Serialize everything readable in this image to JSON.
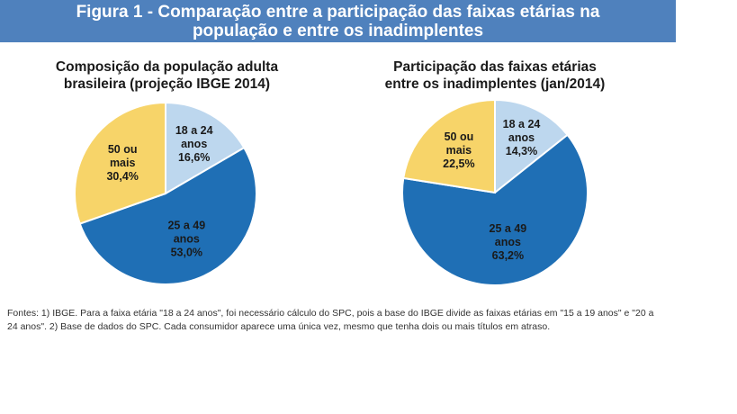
{
  "banner": {
    "line1": "Figura 1 - Comparação entre a participação das faixas etárias na",
    "line2": "população e entre os inadimplentes"
  },
  "chart_data": [
    {
      "type": "pie",
      "title_line1": "Composição da população adulta",
      "title_line2": "brasileira (projeção IBGE 2014)",
      "slices": [
        {
          "label_lines": [
            "18 a 24",
            "anos"
          ],
          "value": 16.6,
          "value_text": "16,6%",
          "color": "#bdd7ee"
        },
        {
          "label_lines": [
            "25 a 49",
            "anos"
          ],
          "value": 53.0,
          "value_text": "53,0%",
          "color": "#1f6fb5"
        },
        {
          "label_lines": [
            "50 ou",
            "mais"
          ],
          "value": 30.4,
          "value_text": "30,4%",
          "color": "#f7d469"
        }
      ]
    },
    {
      "type": "pie",
      "title_line1": "Participação das faixas etárias",
      "title_line2": "entre os inadimplentes (jan/2014)",
      "slices": [
        {
          "label_lines": [
            "18 a 24",
            "anos"
          ],
          "value": 14.3,
          "value_text": "14,3%",
          "color": "#bdd7ee"
        },
        {
          "label_lines": [
            "25 a 49",
            "anos"
          ],
          "value": 63.2,
          "value_text": "63,2%",
          "color": "#1f6fb5"
        },
        {
          "label_lines": [
            "50 ou",
            "mais"
          ],
          "value": 22.5,
          "value_text": "22,5%",
          "color": "#f7d469"
        }
      ]
    }
  ],
  "source": {
    "line1": "Fontes: 1) IBGE. Para a faixa etária \"18 a 24 anos\", foi necessário cálculo do SPC, pois a base do IBGE divide as faixas etárias em \"15 a 19 anos\" e \"20 a",
    "line2": "24 anos\". 2) Base de dados do SPC. Cada consumidor aparece uma única vez, mesmo que tenha dois ou mais títulos em atraso."
  }
}
